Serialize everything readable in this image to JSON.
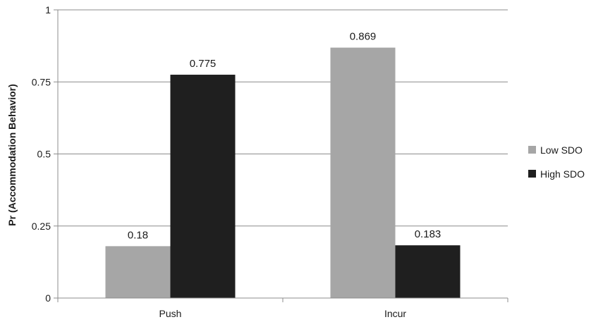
{
  "chart_data": {
    "type": "bar",
    "title": "",
    "xlabel": "",
    "ylabel": "Pr (Accommodation Behavior)",
    "categories": [
      "Push",
      "Incur"
    ],
    "series": [
      {
        "name": "Low SDO",
        "values": [
          0.18,
          0.869
        ],
        "labels": [
          "0.18",
          "0.869"
        ],
        "color": "#a6a6a6"
      },
      {
        "name": "High SDO",
        "values": [
          0.775,
          0.183
        ],
        "labels": [
          "0.775",
          "0.183"
        ],
        "color": "#1f1f1f"
      }
    ],
    "ylim": [
      0,
      1
    ],
    "yticks": [
      0,
      0.25,
      0.5,
      0.75,
      1
    ],
    "ytick_labels": [
      "0",
      "0.25",
      "0.5",
      "0.75",
      "1"
    ],
    "grid": true,
    "legend_position": "right"
  }
}
